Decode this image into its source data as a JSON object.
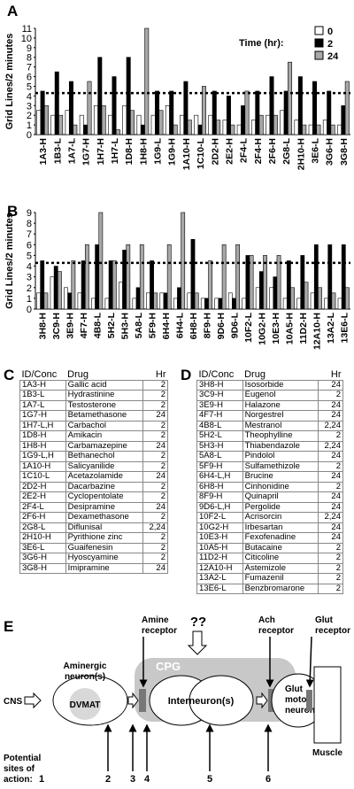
{
  "chart_data": [
    {
      "type": "bar",
      "panel": "A",
      "ylabel": "Grid Lines/2 minutes",
      "legend_title": "Time (hr):",
      "legend": true,
      "categories": [
        "1A3-H",
        "1B3-L",
        "1A7-L",
        "1G7-H",
        "1H7-H",
        "1H7-L",
        "1D8-H",
        "1H8-H",
        "1G9-L",
        "1G9-H",
        "1A10-H",
        "1C10-L",
        "2D2-H",
        "2E2-H",
        "2F4-L",
        "2F4-H",
        "2F6-H",
        "2G8-L",
        "2H10-H",
        "3E6-L",
        "3G6-H",
        "3G8-H"
      ],
      "series": [
        {
          "name": "0",
          "color": "#ffffff",
          "values": [
            2.5,
            2,
            2.5,
            2,
            3,
            2,
            3,
            2,
            2,
            3,
            2,
            2,
            2,
            1.5,
            1,
            1.5,
            2,
            2.5,
            1.5,
            1,
            1.5,
            1
          ]
        },
        {
          "name": "2",
          "color": "#000000",
          "values": [
            4.5,
            6.5,
            5.5,
            1,
            8,
            6,
            8,
            1,
            4.5,
            4.5,
            5.5,
            1,
            4.5,
            4,
            3,
            4.5,
            6,
            4.5,
            6,
            5.5,
            4.5,
            3
          ]
        },
        {
          "name": "24",
          "color": "#a8a8a8",
          "values": [
            3,
            2,
            1,
            5.5,
            3,
            0.5,
            2.5,
            11,
            2.5,
            1,
            1.5,
            5,
            1.5,
            1,
            4.5,
            2,
            2,
            7.5,
            1,
            1,
            1,
            5.5
          ]
        }
      ],
      "reference_line": 4.3,
      "ylim": [
        0,
        11
      ],
      "yticks": [
        0,
        1,
        2,
        3,
        4,
        5,
        6,
        7,
        8,
        9,
        10,
        11
      ]
    },
    {
      "type": "bar",
      "panel": "B",
      "ylabel": "Grid Lines/2 minutes",
      "legend": false,
      "categories": [
        "3H8-H",
        "3C9-H",
        "3E9-H",
        "4F7-H",
        "4B8-L",
        "5H2-L",
        "5H3-H",
        "5A8-L",
        "5F9-H",
        "6H4-H",
        "6H4-L",
        "6H8-H",
        "8F9-H",
        "9D6-H",
        "9D6-L",
        "10F2-L",
        "10G2-H",
        "10E3-H",
        "10A5-H",
        "11D2-H",
        "12A10-H",
        "13A2-L",
        "13E6-L"
      ],
      "series": [
        {
          "name": "0",
          "color": "#ffffff",
          "values": [
            1.5,
            3,
            2,
            1.5,
            1,
            1,
            2.5,
            1,
            1.5,
            1.5,
            1,
            1.5,
            1,
            1,
            1.5,
            1,
            2,
            2,
            1,
            1,
            1.5,
            1,
            1
          ]
        },
        {
          "name": "2",
          "color": "#000000",
          "values": [
            4.5,
            4,
            1.5,
            4.5,
            6,
            4.5,
            5.5,
            2,
            4.5,
            1.5,
            2,
            6.5,
            1,
            1,
            1,
            5,
            3.5,
            3,
            4.5,
            5,
            6,
            6,
            6
          ]
        },
        {
          "name": "24",
          "color": "#a8a8a8",
          "values": [
            1.5,
            3.5,
            4.5,
            6,
            9,
            4.5,
            6,
            6,
            1.5,
            6,
            9,
            1.5,
            4.5,
            6,
            6,
            5,
            5,
            5,
            2,
            2.5,
            2,
            1.5,
            2
          ]
        }
      ],
      "reference_line": 4.3,
      "ylim": [
        0,
        9
      ],
      "yticks": [
        0,
        1,
        2,
        3,
        4,
        5,
        6,
        7,
        8,
        9
      ]
    }
  ],
  "tables": [
    {
      "panel": "C",
      "header": [
        "ID/Conc",
        "Drug",
        "Hr"
      ],
      "rows": [
        [
          "1A3-H",
          "Gallic acid",
          "2"
        ],
        [
          "1B3-L",
          "Hydrastinine",
          "2"
        ],
        [
          "1A7-L",
          "Testosterone",
          "2"
        ],
        [
          "1G7-H",
          "Betamethasone",
          "24"
        ],
        [
          "1H7-L,H",
          "Carbachol",
          "2"
        ],
        [
          "1D8-H",
          "Amikacin",
          "2"
        ],
        [
          "1H8-H",
          "Carbamazepine",
          "24"
        ],
        [
          "1G9-L,H",
          "Bethanechol",
          "2"
        ],
        [
          "1A10-H",
          "Salicyanilide",
          "2"
        ],
        [
          "1C10-L",
          "Acetazolamide",
          "24"
        ],
        [
          "2D2-H",
          "Dacarbazine",
          "2"
        ],
        [
          "2E2-H",
          "Cyclopentolate",
          "2"
        ],
        [
          "2F4-L",
          "Desipramine",
          "24"
        ],
        [
          "2F6-H",
          "Dexamethasone",
          "2"
        ],
        [
          "2G8-L",
          "Diflunisal",
          "2,24"
        ],
        [
          "2H10-H",
          "Pyrithione zinc",
          "2"
        ],
        [
          "3E6-L",
          "Guaifenesin",
          "2"
        ],
        [
          "3G6-H",
          "Hyoscyamine",
          "2"
        ],
        [
          "3G8-H",
          "Imipramine",
          "24"
        ]
      ]
    },
    {
      "panel": "D",
      "header": [
        "ID/Conc",
        "Drug",
        "Hr"
      ],
      "rows": [
        [
          "3H8-H",
          "Isosorbide",
          "24"
        ],
        [
          "3C9-H",
          "Eugenol",
          "2"
        ],
        [
          "3E9-H",
          "Halazone",
          "24"
        ],
        [
          "4F7-H",
          "Norgestrel",
          "24"
        ],
        [
          "4B8-L",
          "Mestranol",
          "2,24"
        ],
        [
          "5H2-L",
          "Theophylline",
          "2"
        ],
        [
          "5H3-H",
          "Thiabendazole",
          "2,24"
        ],
        [
          "5A8-L",
          "Pindolol",
          "24"
        ],
        [
          "5F9-H",
          "Sulfamethizole",
          "2"
        ],
        [
          "6H4-L,H",
          "Brucine",
          "24"
        ],
        [
          "6H8-H",
          "Cinhonidine",
          "2"
        ],
        [
          "8F9-H",
          "Quinapril",
          "24"
        ],
        [
          "9D6-L,H",
          "Pergolide",
          "24"
        ],
        [
          "10F2-L",
          "Acrisorcin",
          "2,24"
        ],
        [
          "10G2-H",
          "Irbesartan",
          "24"
        ],
        [
          "10E3-H",
          "Fexofenadine",
          "24"
        ],
        [
          "10A5-H",
          "Butacaine",
          "2"
        ],
        [
          "11D2-H",
          "Citicoline",
          "2"
        ],
        [
          "12A10-H",
          "Astemizole",
          "2"
        ],
        [
          "13A2-L",
          "Fumazenil",
          "2"
        ],
        [
          "13E6-L",
          "Benzbromarone",
          "2"
        ]
      ]
    }
  ],
  "diagram": {
    "panel": "E",
    "cns": "CNS",
    "aminergic": [
      "Aminergic",
      "neuron(s)"
    ],
    "dvmat": "DVMAT",
    "amine_receptor": [
      "Amine",
      "receptor"
    ],
    "cpg": "CPG",
    "unknown": "??",
    "interneuron": "Interneuron(s)",
    "ach_receptor": [
      "Ach",
      "receptor"
    ],
    "motoneuron": [
      "Glut",
      "moto-",
      "neuron"
    ],
    "glut_receptor": [
      "Glut",
      "receptor"
    ],
    "muscle": "Muscle",
    "sites": [
      "Potential",
      "sites of",
      "action:"
    ],
    "site_numbers": [
      "1",
      "2",
      "3",
      "4",
      "5",
      "6"
    ]
  }
}
